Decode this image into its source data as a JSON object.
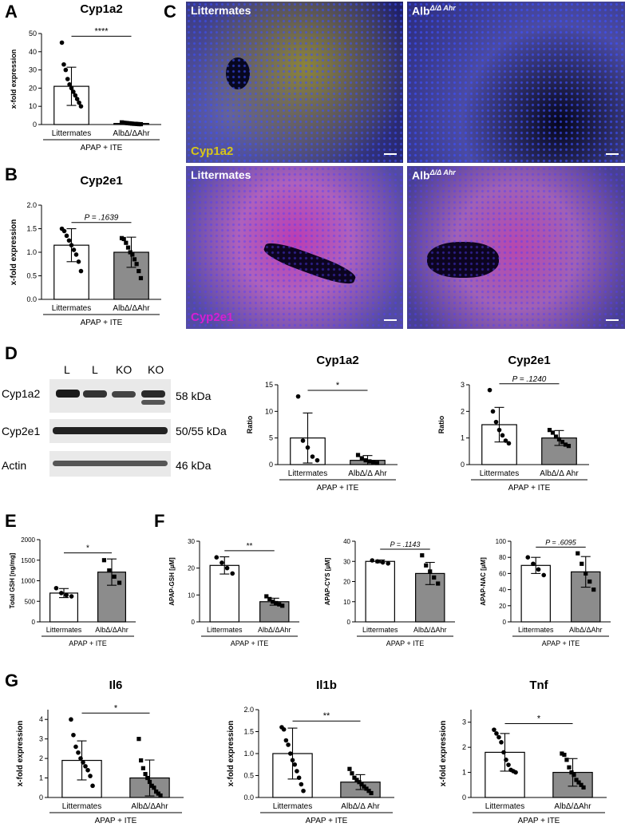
{
  "panels": {
    "A": "A",
    "B": "B",
    "C": "C",
    "D": "D",
    "E": "E",
    "F": "F",
    "G": "G"
  },
  "micrographs": {
    "tl": {
      "top_label": "Littermates",
      "bottom_label": "Cyp1a2",
      "bottom_color": "#d6c51a"
    },
    "tr": {
      "top_label": "Alb",
      "top_label_sup": "Δ/Δ Ahr"
    },
    "bl": {
      "top_label": "Littermates",
      "bottom_label": "Cyp2e1",
      "bottom_color": "#d61fd0"
    },
    "br": {
      "top_label": "Alb",
      "top_label_sup": "Δ/Δ Ahr"
    }
  },
  "western_blot": {
    "lanes": [
      "L",
      "L",
      "KO",
      "KO"
    ],
    "rows": [
      {
        "label": "Cyp1a2",
        "kda": "58 kDa"
      },
      {
        "label": "Cyp2e1",
        "kda": "50/55 kDa"
      },
      {
        "label": "Actin",
        "kda": "46 kDa"
      }
    ]
  },
  "chart_data": [
    {
      "id": "A",
      "type": "bar",
      "title": "Cyp1a2",
      "ylabel": "x-fold expression",
      "categories": [
        "Littermates",
        "AlbΔ/ΔAhr"
      ],
      "values": [
        21,
        0.6
      ],
      "errors": [
        10.5,
        0.3
      ],
      "ylim": [
        0,
        50
      ],
      "yticks": [
        0,
        10,
        20,
        30,
        40,
        50
      ],
      "significance": "****",
      "group_label": "APAP + ITE",
      "points": [
        [
          45,
          33,
          30,
          25,
          22,
          20,
          18,
          16,
          14,
          12,
          10
        ],
        [
          1.2,
          1.0,
          0.9,
          0.8,
          0.7,
          0.6,
          0.5,
          0.4,
          0.4,
          0.3,
          0.2,
          0.2
        ]
      ]
    },
    {
      "id": "B",
      "type": "bar",
      "title": "Cyp2e1",
      "ylabel": "x-fold expression",
      "categories": [
        "Littermates",
        "AlbΔ/ΔAhr"
      ],
      "values": [
        1.15,
        1.0
      ],
      "errors": [
        0.35,
        0.32
      ],
      "ylim": [
        0,
        2.0
      ],
      "yticks": [
        0.0,
        0.5,
        1.0,
        1.5,
        2.0
      ],
      "significance": "P = .1639",
      "group_label": "APAP + ITE",
      "points": [
        [
          1.5,
          1.45,
          1.35,
          1.25,
          1.15,
          1.05,
          0.95,
          0.8,
          0.6
        ],
        [
          1.3,
          1.28,
          1.2,
          1.1,
          1.0,
          0.95,
          0.85,
          0.75,
          0.6,
          0.45
        ]
      ]
    },
    {
      "id": "D1",
      "type": "bar",
      "title": "Cyp1a2",
      "ylabel": "Ratio",
      "categories": [
        "Littermates",
        "AlbΔ/Δ Ahr"
      ],
      "values": [
        5.0,
        0.8
      ],
      "errors": [
        4.7,
        0.9
      ],
      "ylim": [
        0,
        15
      ],
      "yticks": [
        0,
        5,
        10,
        15
      ],
      "significance": "*",
      "group_label": "APAP + ITE",
      "points": [
        [
          12.8,
          4.5,
          3.2,
          1.5,
          0.8
        ],
        [
          1.8,
          1.2,
          0.8,
          0.6,
          0.4,
          0.3
        ]
      ]
    },
    {
      "id": "D2",
      "type": "bar",
      "title": "Cyp2e1",
      "ylabel": "Ratio",
      "categories": [
        "Littermates",
        "AlbΔ/Δ Ahr"
      ],
      "values": [
        1.5,
        1.0
      ],
      "errors": [
        0.65,
        0.28
      ],
      "ylim": [
        0,
        3
      ],
      "yticks": [
        0,
        1,
        2,
        3
      ],
      "significance": "P = .1240",
      "group_label": "APAP + ITE",
      "points": [
        [
          2.8,
          2.0,
          1.6,
          1.3,
          1.1,
          0.9,
          0.8
        ],
        [
          1.3,
          1.2,
          1.05,
          0.95,
          0.85,
          0.75,
          0.7
        ]
      ]
    },
    {
      "id": "E",
      "type": "bar",
      "title": "",
      "ylabel": "Total GSH [ng/mg]",
      "categories": [
        "Littermates",
        "AlbΔ/ΔAhr"
      ],
      "values": [
        700,
        1210
      ],
      "errors": [
        110,
        320
      ],
      "ylim": [
        0,
        2000
      ],
      "yticks": [
        0,
        500,
        1000,
        1500,
        2000
      ],
      "significance": "*",
      "group_label": "APAP + ITE",
      "points": [
        [
          820,
          700,
          650,
          620
        ],
        [
          1500,
          1250,
          1100,
          950
        ]
      ]
    },
    {
      "id": "F1",
      "type": "bar",
      "title": "",
      "ylabel": "APAP-GSH [µM]",
      "categories": [
        "Littermates",
        "AlbΔ/ΔAhr"
      ],
      "values": [
        21,
        7.5
      ],
      "errors": [
        3.2,
        1.3
      ],
      "ylim": [
        0,
        30
      ],
      "yticks": [
        0,
        10,
        20,
        30
      ],
      "significance": "**",
      "group_label": "APAP + ITE",
      "points": [
        [
          24,
          22,
          20,
          18
        ],
        [
          9.5,
          8.5,
          7.5,
          7.0,
          6.5,
          6.0
        ]
      ]
    },
    {
      "id": "F2",
      "type": "bar",
      "title": "",
      "ylabel": "APAP-CYS [µM]",
      "categories": [
        "Littermates",
        "AlbΔ/ΔAhr"
      ],
      "values": [
        30,
        24
      ],
      "errors": [
        0.7,
        5.5
      ],
      "ylim": [
        0,
        40
      ],
      "yticks": [
        0,
        10,
        20,
        30,
        40
      ],
      "significance": "P = .1143",
      "group_label": "APAP + ITE",
      "points": [
        [
          30.5,
          30,
          29.5,
          29
        ],
        [
          33,
          28,
          25,
          22,
          19
        ]
      ]
    },
    {
      "id": "F3",
      "type": "bar",
      "title": "",
      "ylabel": "APAP-NAC [µM]",
      "categories": [
        "Littermates",
        "AlbΔ/ΔAhr"
      ],
      "values": [
        70,
        62
      ],
      "errors": [
        10,
        19
      ],
      "ylim": [
        0,
        100
      ],
      "yticks": [
        0,
        20,
        40,
        60,
        80,
        100
      ],
      "significance": "P = .6095",
      "group_label": "APAP + ITE",
      "points": [
        [
          80,
          72,
          65,
          58
        ],
        [
          85,
          72,
          60,
          50,
          40
        ]
      ]
    },
    {
      "id": "G1",
      "type": "bar",
      "title": "Il6",
      "ylabel": "x-fold expression",
      "categories": [
        "Littermates",
        "AlbΔ/ΔAhr"
      ],
      "values": [
        1.9,
        1.0
      ],
      "errors": [
        1.0,
        0.92
      ],
      "ylim": [
        0,
        4.5
      ],
      "yticks": [
        0,
        1,
        2,
        3,
        4
      ],
      "significance": "*",
      "group_label": "APAP + ITE",
      "points": [
        [
          4.0,
          3.2,
          2.6,
          2.3,
          2.0,
          1.8,
          1.6,
          1.4,
          1.1,
          0.6
        ],
        [
          3.0,
          1.9,
          1.5,
          1.2,
          1.0,
          0.8,
          0.6,
          0.5,
          0.3,
          0.2,
          0.1
        ]
      ]
    },
    {
      "id": "G2",
      "type": "bar",
      "title": "Il1b",
      "ylabel": "x-fold expression",
      "categories": [
        "Littermates",
        "AlbΔ/Δ Ahr"
      ],
      "values": [
        1.0,
        0.35
      ],
      "errors": [
        0.58,
        0.17
      ],
      "ylim": [
        0,
        2.0
      ],
      "yticks": [
        0.0,
        0.5,
        1.0,
        1.5,
        2.0
      ],
      "significance": "**",
      "group_label": "APAP + ITE",
      "points": [
        [
          1.6,
          1.55,
          1.3,
          1.2,
          1.0,
          0.85,
          0.75,
          0.6,
          0.45,
          0.3,
          0.15
        ],
        [
          0.65,
          0.55,
          0.45,
          0.4,
          0.35,
          0.3,
          0.25,
          0.2,
          0.15,
          0.1
        ]
      ]
    },
    {
      "id": "G3",
      "type": "bar",
      "title": "Tnf",
      "ylabel": "x-fold expression",
      "categories": [
        "Littermates",
        "AlbΔ/ΔAhr"
      ],
      "values": [
        1.8,
        1.0
      ],
      "errors": [
        0.75,
        0.55
      ],
      "ylim": [
        0,
        3.5
      ],
      "yticks": [
        0,
        1,
        2,
        3
      ],
      "significance": "*",
      "group_label": "APAP + ITE",
      "points": [
        [
          2.7,
          2.55,
          2.4,
          2.2,
          1.8,
          1.5,
          1.3,
          1.1,
          1.05,
          1.0
        ],
        [
          1.75,
          1.7,
          1.5,
          1.2,
          1.0,
          0.9,
          0.7,
          0.6,
          0.5,
          0.4
        ]
      ]
    }
  ]
}
